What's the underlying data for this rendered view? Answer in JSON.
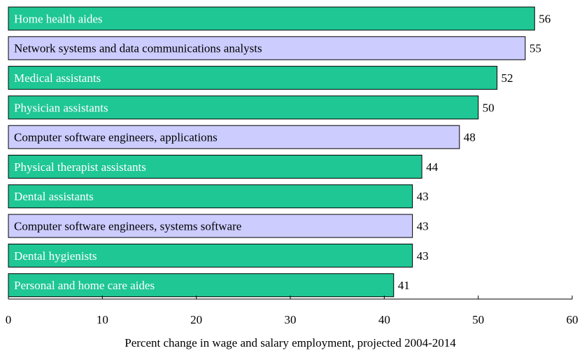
{
  "chart_data": {
    "type": "bar",
    "orientation": "horizontal",
    "xlabel": "Percent change in wage and salary employment, projected 2004-2014",
    "categories": [
      "Home health aides",
      "Network systems and data communications analysts",
      "Medical assistants",
      "Physician assistants",
      "Computer software engineers, applications",
      "Physical therapist assistants",
      "Dental assistants",
      "Computer software engineers, systems software",
      "Dental hygienists",
      "Personal and home care aides"
    ],
    "values": [
      56,
      55,
      52,
      50,
      48,
      44,
      43,
      43,
      43,
      41
    ],
    "colors": [
      "#1fc795",
      "#ccccff",
      "#1fc795",
      "#1fc795",
      "#ccccff",
      "#1fc795",
      "#1fc795",
      "#ccccff",
      "#1fc795",
      "#1fc795"
    ],
    "xlim": [
      0,
      60
    ],
    "xticks": [
      0,
      10,
      20,
      30,
      40,
      50,
      60
    ]
  }
}
